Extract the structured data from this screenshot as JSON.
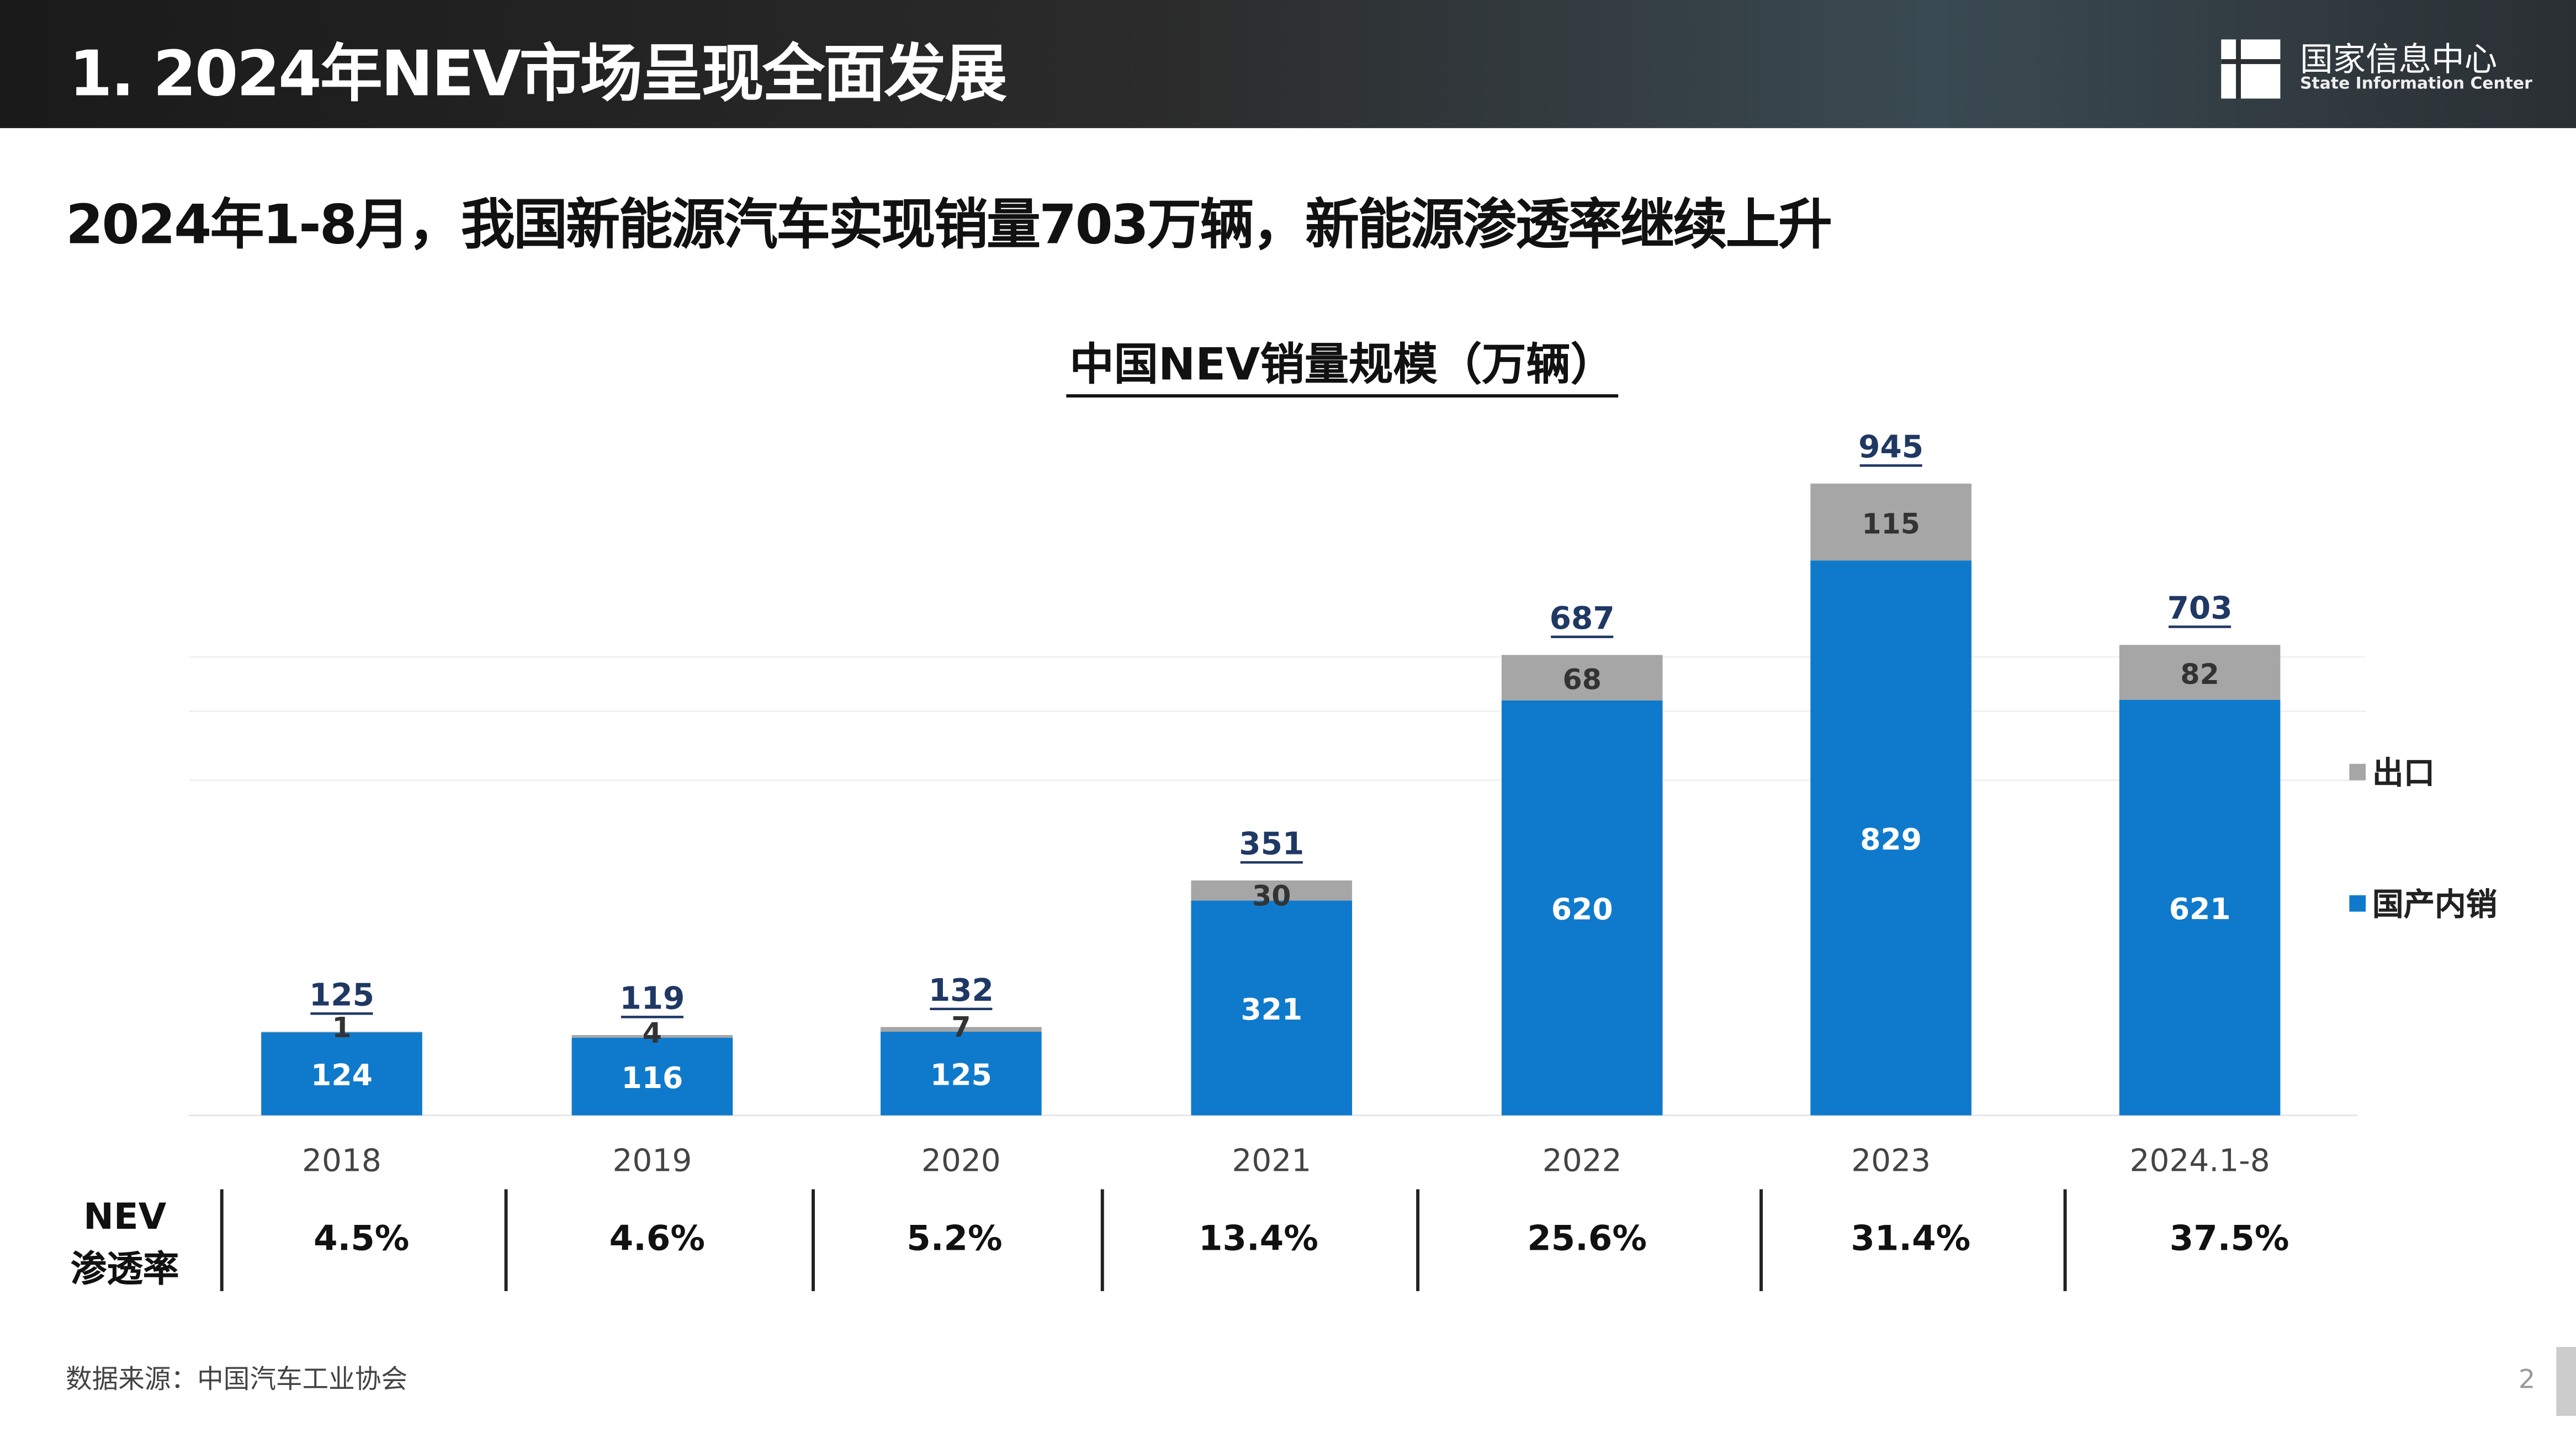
{
  "header": {
    "title": "1. 2024年NEV市场呈现全面发展",
    "logo_cn": "国家信息中心",
    "logo_en": "State Information Center"
  },
  "subtitle": "2024年1-8月，我国新能源汽车实现销量703万辆，新能源渗透率继续上升",
  "chart_data": {
    "type": "bar",
    "stacked": true,
    "title": "中国NEV销量规模（万辆）",
    "categories": [
      "2018",
      "2019",
      "2020",
      "2021",
      "2022",
      "2023",
      "2024.1-8"
    ],
    "series": [
      {
        "name": "国产内销",
        "color": "#0f7acb",
        "values": [
          124,
          116,
          125,
          321,
          620,
          829,
          621
        ]
      },
      {
        "name": "出口",
        "color": "#a6a6a6",
        "values": [
          1,
          4,
          7,
          30,
          68,
          115,
          82
        ]
      }
    ],
    "totals": [
      125,
      119,
      132,
      351,
      687,
      945,
      703
    ],
    "ylim": [
      0,
      945
    ],
    "legend": "right",
    "grid": false
  },
  "penetration": {
    "label_line1": "NEV",
    "label_line2": "渗透率",
    "values": [
      "4.5%",
      "4.6%",
      "5.2%",
      "13.4%",
      "25.6%",
      "31.4%",
      "37.5%"
    ]
  },
  "source": "数据来源：中国汽车工业协会",
  "page_number": "2"
}
